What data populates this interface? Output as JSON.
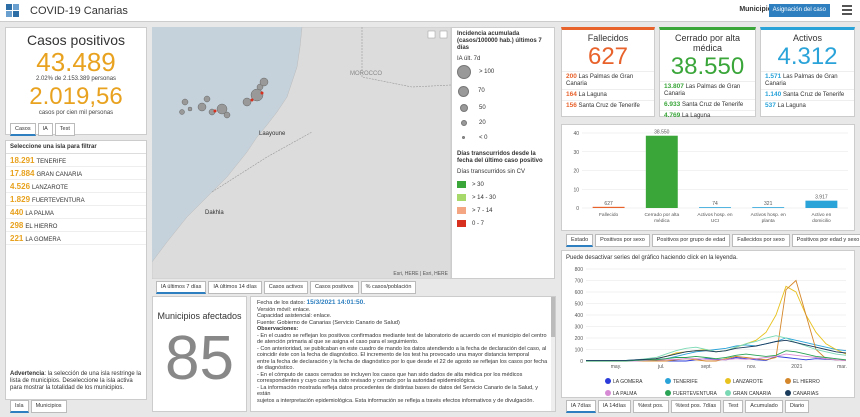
{
  "header": {
    "title": "COVID-19 Canarias",
    "municipio_label": "Municipio",
    "asignacion_button": "Asignación del caso"
  },
  "casos": {
    "title": "Casos positivos",
    "total": "43.489",
    "pct_text": "2.02% de 2.153.389 personas",
    "per_cien_mil": "2.019,56",
    "per_cien_mil_label": "casos por cien mil personas",
    "tabs": [
      "Casos",
      "IA",
      "Test"
    ]
  },
  "islands": {
    "header": "Seleccione una isla para filtrar",
    "rows": [
      {
        "value": "18.291",
        "name": "TENERIFE"
      },
      {
        "value": "17.884",
        "name": "GRAN CANARIA"
      },
      {
        "value": "4.526",
        "name": "LANZAROTE"
      },
      {
        "value": "1.829",
        "name": "FUERTEVENTURA"
      },
      {
        "value": "440",
        "name": "LA PALMA"
      },
      {
        "value": "298",
        "name": "EL HIERRO"
      },
      {
        "value": "221",
        "name": "LA GOMERA"
      }
    ],
    "advertencia_bold": "Advertencia",
    "advertencia_text": ": la selección de una isla restringe la lista de municipios. Deseleccione la isla activa para mostrar la totalidad de los municipios.",
    "tabs": [
      "Isla",
      "Municipios"
    ]
  },
  "map": {
    "label_marruecos": "MOROCCO",
    "label_laayoune": "Laayoune",
    "label_dakhla": "Dakhla",
    "attribution": "Esri, HERE | Esri, HERE",
    "tabs": [
      "IA últimos 7 días",
      "IA últimos 14 días",
      "Casos activos",
      "Casos positivos",
      "% casos/población"
    ]
  },
  "legend": {
    "title": "Incidencia acumulada (casos/100000 hab.) últimos 7 días",
    "sub": "IA últ. 7d",
    "circles": [
      {
        "label": "> 100"
      },
      {
        "label": "70"
      },
      {
        "label": "50"
      },
      {
        "label": "20"
      },
      {
        "label": "< 0"
      }
    ],
    "days_title": "Días transcurridos desde la fecha del último caso positivo",
    "days_sub": "Días transcurridos sin CV",
    "days": [
      {
        "label": "> 30",
        "color": "#3aa63a"
      },
      {
        "label": "> 14 - 30",
        "color": "#a6d96a"
      },
      {
        "label": "> 7 - 14",
        "color": "#f4a582"
      },
      {
        "label": "0 - 7",
        "color": "#d7301f"
      }
    ]
  },
  "cards": {
    "fallecidos": {
      "title": "Fallecidos",
      "value": "627",
      "color": "#e8622c",
      "rows": [
        {
          "value": "200",
          "name": "Las Palmas de Gran Canaria"
        },
        {
          "value": "164",
          "name": "La Laguna"
        },
        {
          "value": "156",
          "name": "Santa Cruz de Tenerife"
        }
      ]
    },
    "cerrado": {
      "title": "Cerrado por alta médica",
      "value": "38.550",
      "color": "#3aa63a",
      "rows": [
        {
          "value": "13.807",
          "name": "Las Palmas de Gran Canaria"
        },
        {
          "value": "6.933",
          "name": "Santa Cruz de Tenerife"
        },
        {
          "value": "4.769",
          "name": "La Laguna"
        }
      ]
    },
    "activos": {
      "title": "Activos",
      "value": "4.312",
      "color": "#2aa3d9",
      "rows": [
        {
          "value": "1.571",
          "name": "Las Palmas de Gran Canaria"
        },
        {
          "value": "1.140",
          "name": "Santa Cruz de Tenerife"
        },
        {
          "value": "537",
          "name": "La Laguna"
        }
      ]
    }
  },
  "bar_tabs": [
    "Estado",
    "Positivos por sexo",
    "Positivos por grupo de edad",
    "Fallecidos por sexo",
    "Positivos por edad y sexo"
  ],
  "line_tabs": [
    "IA 7días",
    "IA 14días",
    "%test pos.",
    "%test pos. 7días",
    "Test",
    "Acumulado",
    "Diario"
  ],
  "line_hint": "Puede desactivar series del gráfico haciendo click en la leyenda.",
  "municipios": {
    "title": "Municipios afectados",
    "value": "85"
  },
  "info": {
    "fecha_label": "Fecha de los datos:",
    "fecha": "15/3/2021 14:01:50.",
    "version": "Versión móvil: enlace.",
    "capacidad": "Capacidad asistencial: enlace.",
    "fuente": "Fuente: Gobierno de Canarias (Servicio Canario de Salud)",
    "obs": "Observaciones:",
    "lines": [
      "- En el cuadro se reflejan los positivos confirmados mediante test de laboratorio de acuerdo con el municipio del centro",
      "de atención primaria al que se asigna el caso para el seguimiento.",
      "- Con anterioridad, se publicaban en este cuadro de mando los datos atendiendo a la fecha de declaración del caso, al",
      "coincidir éste con la fecha de diagnóstico. El incremento de los test ha provocado una mayor distancia temporal",
      "entre la fecha de declaración y la fecha de diagnóstico por lo que desde el 22 de agosto se reflejan los casos por fecha",
      "de diagnóstico.",
      "- En el cómputo de casos cerrados se incluyen los casos que han sido dados de alta médica por los médicos",
      "correspondientes y cuyo caso ha sido revisado y cerrado por la autoridad epidemiológica.",
      "- La información mostrada refleja datos procedentes de distintas bases de datos del Servicio Canario de la Salud, y están",
      "sujetos a interpretación epidemiológica. Esta información se refleja a través efectos informativos y de divulgación."
    ]
  },
  "chart_data": [
    {
      "type": "bar",
      "categories": [
        "Fallecido",
        "Cerrado por alta médica",
        "Activos hosp. en UCI",
        "Activos hosp. en planta",
        "Activo en domicilio"
      ],
      "values": [
        627,
        38550,
        74,
        321,
        3917
      ],
      "value_labels": [
        "627",
        "38.550",
        "74",
        "321",
        "3.917"
      ],
      "colors": [
        "#e8622c",
        "#3aa63a",
        "#2aa3d9",
        "#2aa3d9",
        "#2aa3d9"
      ],
      "ylim": [
        0,
        40000
      ],
      "yticks": [
        0,
        10000,
        20000,
        30000,
        40000
      ],
      "ytick_labels": [
        "0",
        "10",
        "20",
        "30",
        "40"
      ],
      "grid": true
    },
    {
      "type": "line",
      "xlabels": [
        "may.",
        "jul.",
        "sept.",
        "nov.",
        "2021",
        "mar."
      ],
      "ylim": [
        0,
        800
      ],
      "yticks": [
        0,
        100,
        200,
        300,
        400,
        500,
        600,
        700,
        800
      ],
      "grid": true,
      "legend_position": "bottom",
      "series": [
        {
          "name": "LA GOMERA",
          "color": "#2a3bd9",
          "values": [
            0,
            0,
            0,
            0,
            0,
            0,
            5,
            5,
            0,
            0,
            0,
            10,
            20,
            15,
            10,
            30,
            20,
            10,
            5,
            40,
            30,
            20,
            10,
            20,
            15,
            10,
            5
          ]
        },
        {
          "name": "TENERIFE",
          "color": "#2aa3d9",
          "values": [
            5,
            5,
            5,
            5,
            5,
            10,
            10,
            15,
            20,
            40,
            60,
            80,
            90,
            100,
            110,
            130,
            140,
            130,
            150,
            170,
            200,
            180,
            160,
            140,
            120,
            100,
            90
          ]
        },
        {
          "name": "LANZAROTE",
          "color": "#e8c21f",
          "values": [
            0,
            0,
            0,
            0,
            0,
            5,
            10,
            20,
            40,
            70,
            80,
            90,
            100,
            80,
            90,
            120,
            150,
            180,
            250,
            400,
            650,
            600,
            400,
            250,
            150,
            100,
            60
          ]
        },
        {
          "name": "EL HIERRO",
          "color": "#d4862a",
          "values": [
            0,
            0,
            0,
            0,
            0,
            0,
            0,
            0,
            0,
            10,
            20,
            10,
            0,
            0,
            20,
            40,
            30,
            20,
            10,
            30,
            620,
            700,
            400,
            100,
            20,
            10,
            5
          ]
        },
        {
          "name": "LA PALMA",
          "color": "#d78ad4",
          "values": [
            0,
            0,
            0,
            0,
            0,
            0,
            5,
            10,
            10,
            15,
            20,
            20,
            15,
            10,
            10,
            20,
            15,
            20,
            30,
            40,
            60,
            50,
            40,
            30,
            20,
            10,
            5
          ]
        },
        {
          "name": "FUERTEVENTURA",
          "color": "#2aa355",
          "values": [
            0,
            0,
            0,
            0,
            0,
            5,
            10,
            10,
            20,
            30,
            30,
            40,
            30,
            20,
            30,
            50,
            60,
            50,
            40,
            50,
            90,
            80,
            60,
            40,
            30,
            20,
            10
          ]
        },
        {
          "name": "GRAN CANARIA",
          "color": "#7ad9b4",
          "values": [
            5,
            5,
            5,
            5,
            5,
            10,
            20,
            30,
            60,
            90,
            110,
            120,
            100,
            80,
            90,
            120,
            150,
            170,
            200,
            220,
            200,
            160,
            130,
            100,
            80,
            60,
            50
          ]
        },
        {
          "name": "CANARIAS",
          "color": "#1a3a5c",
          "values": [
            5,
            5,
            5,
            5,
            5,
            10,
            15,
            20,
            40,
            60,
            80,
            90,
            90,
            80,
            90,
            110,
            120,
            130,
            150,
            170,
            180,
            160,
            140,
            120,
            100,
            80,
            70
          ]
        }
      ]
    }
  ]
}
